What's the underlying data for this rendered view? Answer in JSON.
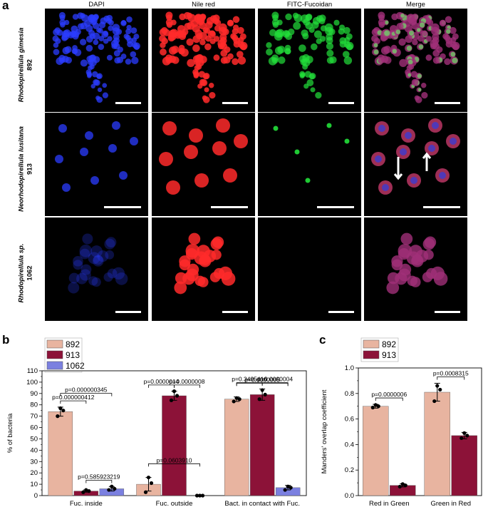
{
  "panel_a": {
    "letter": "a",
    "columns": [
      "DAPI",
      "Nile red",
      "FITC-Fucoidan",
      "Merge"
    ],
    "rows": [
      {
        "species": "Rhodopirellula gimesia",
        "code": "892"
      },
      {
        "species": "Neorhodopirellula lusitana",
        "code": "913"
      },
      {
        "species": "Rhodopirellula sp.",
        "code": "1062"
      }
    ],
    "channel_colors": {
      "dapi": "#2b3cff",
      "nile_red": "#ff2a2a",
      "fitc": "#22e03a",
      "merge": "#b0307a"
    }
  },
  "chart_data": [
    {
      "panel": "b",
      "type": "bar",
      "ylabel": "% of bacteria",
      "ylim": [
        0,
        110
      ],
      "yticks": [
        "0",
        "10",
        "20",
        "30",
        "40",
        "50",
        "60",
        "70",
        "80",
        "90",
        "100",
        "110"
      ],
      "categories": [
        "Fuc. inside",
        "Fuc. outside",
        "Bact. in contact with Fuc."
      ],
      "series": [
        {
          "name": "892",
          "color": "#e8b4a0",
          "values": [
            74,
            10,
            85
          ],
          "errors": [
            4,
            6,
            2
          ],
          "points": [
            [
              70,
              77,
              75
            ],
            [
              3,
              16,
              11
            ],
            [
              83,
              86,
              85
            ]
          ]
        },
        {
          "name": "913",
          "color": "#8c1238",
          "values": [
            4,
            88,
            89
          ],
          "errors": [
            1,
            4,
            5
          ],
          "points": [
            [
              3,
              5,
              4
            ],
            [
              84,
              92,
              88
            ],
            [
              85,
              93,
              89
            ]
          ]
        },
        {
          "name": "1062",
          "color": "#7b80e0",
          "values": [
            6,
            0,
            7
          ],
          "errors": [
            2,
            0,
            2
          ],
          "points": [
            [
              5,
              8,
              6
            ],
            [
              0,
              0,
              0
            ],
            [
              5,
              8,
              7
            ]
          ]
        }
      ],
      "annotations": [
        {
          "text": "p=0.000000345",
          "group": 0,
          "from": 0,
          "to": 2
        },
        {
          "text": "p=0.000000412",
          "group": 0,
          "from": 0,
          "to": 1
        },
        {
          "text": "p=0.585923219",
          "group": 0,
          "from": 1,
          "to": 2
        },
        {
          "text": "p=0.0603910",
          "group": 1,
          "from": 0,
          "to": 2
        },
        {
          "text": "p=0.0000014",
          "group": 1,
          "from": 0,
          "to": 1
        },
        {
          "text": "p=0.0000008",
          "group": 1,
          "from": 1,
          "to": 2
        },
        {
          "text": "p=0.0000005",
          "group": 2,
          "from": 0,
          "to": 2
        },
        {
          "text": "p=0.3495416",
          "group": 2,
          "from": 0,
          "to": 1
        },
        {
          "text": "p=0.0000004",
          "group": 2,
          "from": 1,
          "to": 2
        }
      ],
      "legend": "top-left"
    },
    {
      "panel": "c",
      "type": "bar",
      "ylabel": "Manders' overlap coefficient",
      "ylim": [
        0,
        1.0
      ],
      "yticks": [
        "0.0",
        "0.2",
        "0.4",
        "0.6",
        "0.8",
        "1.0"
      ],
      "categories": [
        "Red in Green",
        "Green in Red"
      ],
      "series": [
        {
          "name": "892",
          "color": "#e8b4a0",
          "values": [
            0.7,
            0.81
          ],
          "errors": [
            0.015,
            0.07
          ],
          "points": [
            [
              0.69,
              0.71,
              0.7
            ],
            [
              0.74,
              0.86,
              0.83
            ]
          ]
        },
        {
          "name": "913",
          "color": "#8c1238",
          "values": [
            0.08,
            0.47
          ],
          "errors": [
            0.012,
            0.025
          ],
          "points": [
            [
              0.07,
              0.09,
              0.08
            ],
            [
              0.45,
              0.49,
              0.47
            ]
          ]
        }
      ],
      "annotations": [
        {
          "text": "p=0.0000006",
          "group": 0,
          "from": 0,
          "to": 1
        },
        {
          "text": "p=0.0008315",
          "group": 1,
          "from": 0,
          "to": 1
        }
      ],
      "legend": "top-left"
    }
  ]
}
